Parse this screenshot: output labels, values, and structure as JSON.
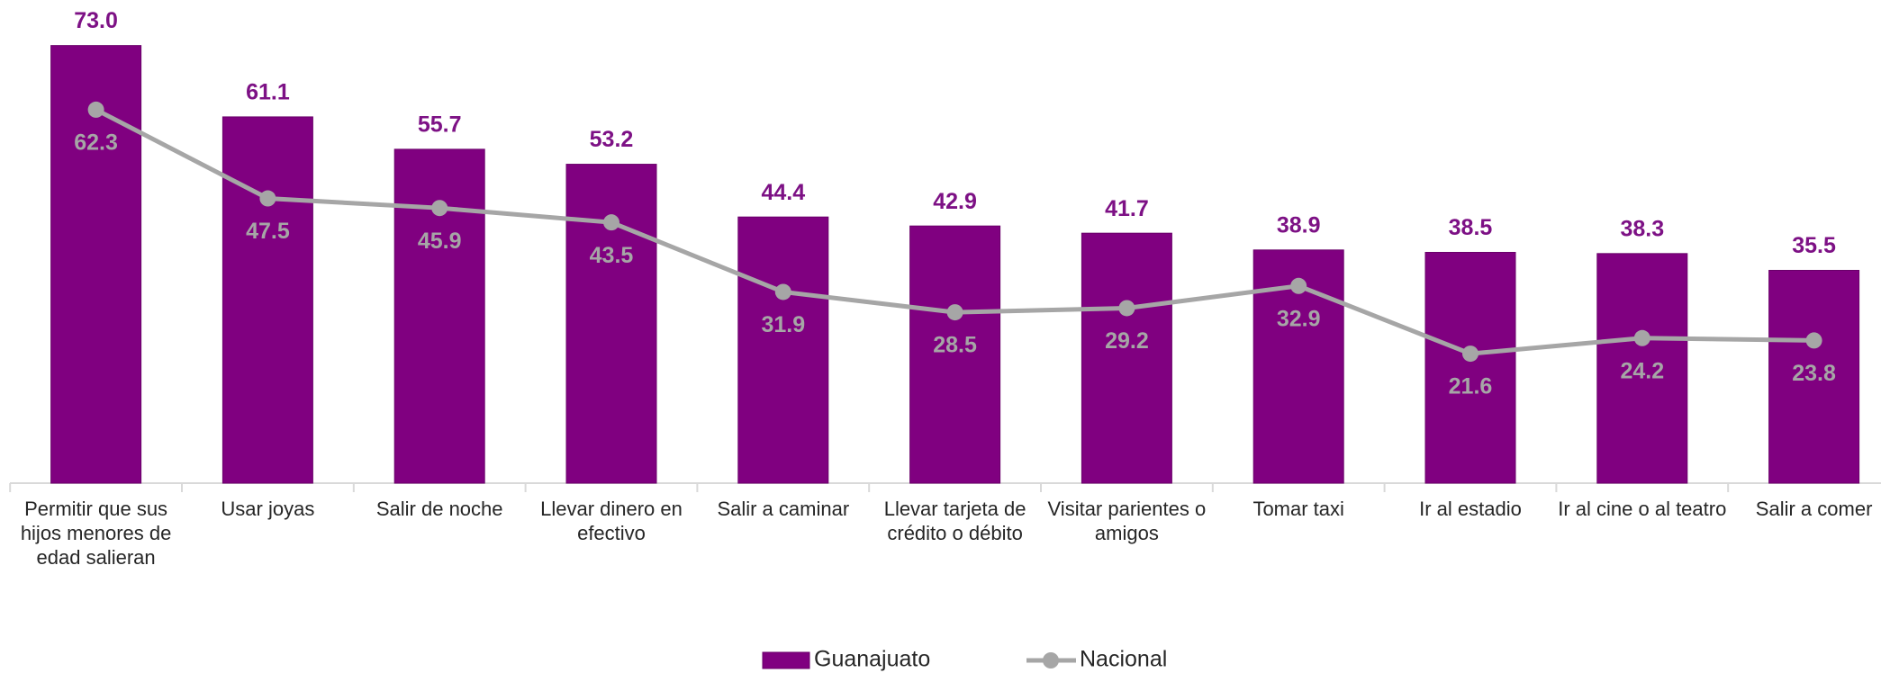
{
  "chart_data": {
    "type": "bar",
    "categories": [
      "Permitir que sus hijos menores de edad salieran",
      "Usar joyas",
      "Salir de noche",
      "Llevar dinero en efectivo",
      "Salir a caminar",
      "Llevar tarjeta de crédito o débito",
      "Visitar parientes o amigos",
      "Tomar taxi",
      "Ir al estadio",
      "Ir al cine o al teatro",
      "Salir a comer"
    ],
    "series": [
      {
        "name": "Guanajuato",
        "type": "bar",
        "color": "#800080",
        "label_color": "#7d1185",
        "values": [
          73,
          61.1,
          55.7,
          53.2,
          44.4,
          42.9,
          41.7,
          38.9,
          38.5,
          38.3,
          35.5
        ],
        "value_labels": [
          "73.0",
          "61.1",
          "55.7",
          "53.2",
          "44.4",
          "42.9",
          "41.7",
          "38.9",
          "38.5",
          "38.3",
          "35.5"
        ]
      },
      {
        "name": "Nacional",
        "type": "line",
        "color": "#a6a6a6",
        "label_color": "#a6a6a6",
        "values": [
          62.3,
          47.5,
          45.9,
          43.5,
          31.9,
          28.5,
          29.2,
          32.9,
          21.6,
          24.2,
          23.8
        ],
        "value_labels": [
          "62.3",
          "47.5",
          "45.9",
          "43.5",
          "31.9",
          "28.5",
          "29.2",
          "32.9",
          "21.6",
          "24.2",
          "23.8"
        ]
      }
    ],
    "ylim": [
      0,
      80
    ],
    "legend": "bottom"
  }
}
